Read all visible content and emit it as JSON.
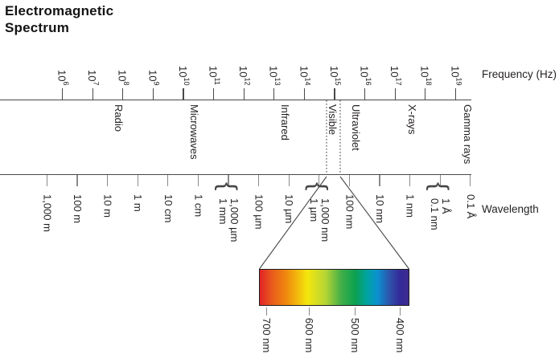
{
  "title": {
    "line1": "Electromagnetic",
    "line2": "Spectrum"
  },
  "frequency_axis": {
    "title": "Frequency (Hz)",
    "base": "10",
    "exponents": [
      "6",
      "7",
      "8",
      "9",
      "10",
      "11",
      "12",
      "13",
      "14",
      "15",
      "16",
      "17",
      "18",
      "19"
    ]
  },
  "bands": [
    "Radio",
    "Microwaves",
    "Infrared",
    "Visible",
    "Ultraviolet",
    "X-rays",
    "Gamma rays"
  ],
  "wavelength_axis": {
    "title": "Wavelength",
    "brace_glyph": "{",
    "ticks": [
      "1,000 m",
      "100 m",
      "10 m",
      "1 m",
      "10 cm",
      "1 cm",
      [
        "1 mm",
        "1,000 µm"
      ],
      "100 µm",
      "10 µm",
      [
        "1 µm",
        "1,000 nm"
      ],
      "100 nm",
      "10 nm",
      "1 nm",
      [
        "0.1 nm",
        "1 Å"
      ],
      "0.1 Å"
    ]
  },
  "spectrum_bar": {
    "ticks": [
      "700 nm",
      "600 nm",
      "500 nm",
      "400 nm"
    ],
    "gradient_stops": [
      "#e32227 0%",
      "#e85a1c 8%",
      "#f08a0d 18%",
      "#f4e60d 32%",
      "#b8d534 44%",
      "#3fae49 55%",
      "#0da04f 64%",
      "#00a4a0 72%",
      "#0b91d0 79%",
      "#2e55ab 87%",
      "#342a99 94%",
      "#3e2b8e 100%"
    ]
  },
  "colors": {
    "axis_line": "#47484a",
    "minor_tick": "#8a8b8d",
    "text": "#231f20",
    "bar_border": "#1c1c1c"
  }
}
